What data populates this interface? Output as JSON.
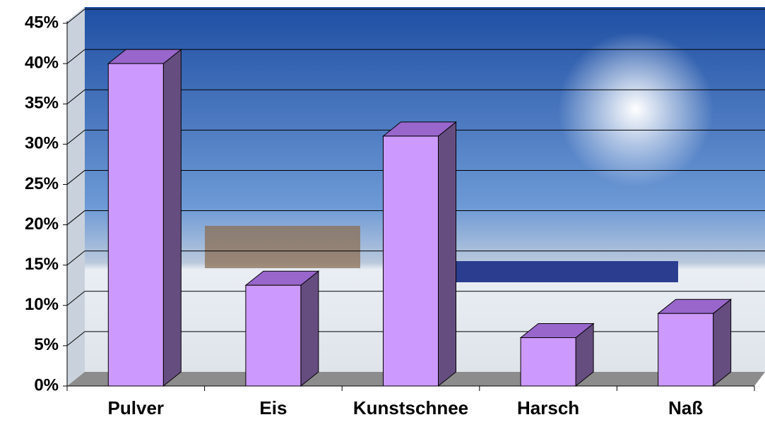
{
  "chart_data": {
    "type": "bar3d",
    "categories": [
      "Pulver",
      "Eis",
      "Kunstschnee",
      "Harsch",
      "Naß"
    ],
    "values": [
      40,
      12.5,
      31,
      6,
      9
    ],
    "color": "#cc99ff",
    "side_color": "#664d80",
    "top_color": "#9966cc",
    "ylim": [
      0,
      45
    ],
    "yticks": [
      {
        "value": 0,
        "label": "0%"
      },
      {
        "value": 5,
        "label": "5%"
      },
      {
        "value": 10,
        "label": "10%"
      },
      {
        "value": 15,
        "label": "15%"
      },
      {
        "value": 20,
        "label": "20%"
      },
      {
        "value": 25,
        "label": "25%"
      },
      {
        "value": 30,
        "label": "30%"
      },
      {
        "value": 35,
        "label": "35%"
      },
      {
        "value": 40,
        "label": "40%"
      },
      {
        "value": 45,
        "label": "45%"
      }
    ],
    "grid": true
  }
}
